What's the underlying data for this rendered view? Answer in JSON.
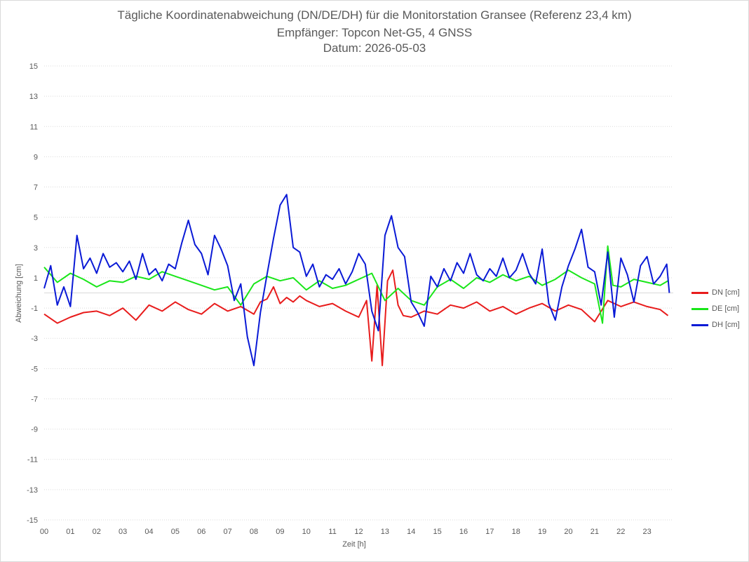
{
  "chart_data": {
    "type": "line",
    "title": "Tägliche Koordinatenabweichung (DN/DE/DH) für die Monitorstation Gransee (Referenz 23,4 km)",
    "subtitle": "Empfänger: Topcon Net-G5, 4 GNSS",
    "date_line": "Datum: 2026-05-03",
    "xlabel": "Zeit [h]",
    "ylabel": "Abweichung [cm]",
    "xlim": [
      0,
      24
    ],
    "ylim": [
      -15,
      15
    ],
    "x_ticks": [
      "00",
      "01",
      "02",
      "03",
      "04",
      "05",
      "06",
      "07",
      "08",
      "09",
      "10",
      "11",
      "12",
      "13",
      "14",
      "15",
      "16",
      "17",
      "18",
      "19",
      "20",
      "21",
      "22",
      "23"
    ],
    "y_ticks": [
      "15",
      "13",
      "11",
      "9",
      "7",
      "5",
      "3",
      "1",
      "-1",
      "-3",
      "-5",
      "-7",
      "-9",
      "-11",
      "-13",
      "-15"
    ],
    "grid": "horizontal dotted",
    "legend_position": "right",
    "series": [
      {
        "name": "DN [cm]",
        "color": "#e81c1c",
        "x": [
          0,
          0.5,
          1,
          1.5,
          2,
          2.5,
          3,
          3.5,
          4,
          4.5,
          5,
          5.5,
          6,
          6.5,
          7,
          7.5,
          8,
          8.25,
          8.5,
          8.75,
          9,
          9.25,
          9.5,
          9.75,
          10,
          10.5,
          11,
          11.5,
          12,
          12.3,
          12.5,
          12.7,
          12.9,
          13.1,
          13.3,
          13.5,
          13.7,
          14,
          14.5,
          15,
          15.5,
          16,
          16.5,
          17,
          17.5,
          18,
          18.5,
          19,
          19.5,
          20,
          20.5,
          21,
          21.5,
          22,
          22.5,
          23,
          23.5,
          23.8
        ],
        "y": [
          -1.4,
          -2.0,
          -1.6,
          -1.3,
          -1.2,
          -1.5,
          -1.0,
          -1.8,
          -0.8,
          -1.2,
          -0.6,
          -1.1,
          -1.4,
          -0.7,
          -1.2,
          -0.9,
          -1.4,
          -0.6,
          -0.4,
          0.4,
          -0.7,
          -0.3,
          -0.6,
          -0.2,
          -0.5,
          -0.9,
          -0.7,
          -1.2,
          -1.6,
          -0.5,
          -4.5,
          0.5,
          -4.8,
          0.8,
          1.5,
          -0.8,
          -1.5,
          -1.6,
          -1.2,
          -1.4,
          -0.8,
          -1.0,
          -0.6,
          -1.2,
          -0.9,
          -1.4,
          -1.0,
          -0.7,
          -1.2,
          -0.8,
          -1.1,
          -1.9,
          -0.5,
          -0.9,
          -0.6,
          -0.9,
          -1.1,
          -1.5
        ]
      },
      {
        "name": "DE [cm]",
        "color": "#19e619",
        "x": [
          0,
          0.5,
          1,
          1.5,
          2,
          2.5,
          3,
          3.5,
          4,
          4.5,
          5,
          5.5,
          6,
          6.5,
          7,
          7.5,
          8,
          8.5,
          9,
          9.5,
          10,
          10.5,
          11,
          11.5,
          12,
          12.5,
          13,
          13.5,
          14,
          14.5,
          15,
          15.5,
          16,
          16.5,
          17,
          17.5,
          18,
          18.5,
          19,
          19.5,
          20,
          20.5,
          21,
          21.3,
          21.5,
          21.7,
          22,
          22.5,
          23,
          23.5,
          23.8
        ],
        "y": [
          1.7,
          0.7,
          1.3,
          0.9,
          0.4,
          0.8,
          0.7,
          1.1,
          0.9,
          1.4,
          1.1,
          0.8,
          0.5,
          0.2,
          0.4,
          -0.8,
          0.6,
          1.1,
          0.8,
          1.0,
          0.2,
          0.8,
          0.3,
          0.5,
          0.9,
          1.3,
          -0.5,
          0.3,
          -0.5,
          -0.8,
          0.4,
          0.9,
          0.3,
          1.0,
          0.7,
          1.2,
          0.8,
          1.1,
          0.5,
          0.9,
          1.5,
          1.0,
          0.6,
          -2.0,
          3.1,
          0.5,
          0.4,
          0.9,
          0.7,
          0.5,
          0.8
        ]
      },
      {
        "name": "DH [cm]",
        "color": "#0a1ad6",
        "x": [
          0,
          0.25,
          0.5,
          0.75,
          1,
          1.25,
          1.5,
          1.75,
          2,
          2.25,
          2.5,
          2.75,
          3,
          3.25,
          3.5,
          3.75,
          4,
          4.25,
          4.5,
          4.75,
          5,
          5.25,
          5.5,
          5.75,
          6,
          6.25,
          6.5,
          6.75,
          7,
          7.25,
          7.5,
          7.75,
          8,
          8.25,
          8.5,
          8.75,
          9,
          9.25,
          9.5,
          9.75,
          10,
          10.25,
          10.5,
          10.75,
          11,
          11.25,
          11.5,
          11.75,
          12,
          12.25,
          12.5,
          12.75,
          13,
          13.25,
          13.5,
          13.75,
          14,
          14.25,
          14.5,
          14.75,
          15,
          15.25,
          15.5,
          15.75,
          16,
          16.25,
          16.5,
          16.75,
          17,
          17.25,
          17.5,
          17.75,
          18,
          18.25,
          18.5,
          18.75,
          19,
          19.25,
          19.5,
          19.75,
          20,
          20.25,
          20.5,
          20.75,
          21,
          21.25,
          21.5,
          21.75,
          22,
          22.25,
          22.5,
          22.75,
          23,
          23.25,
          23.5,
          23.75,
          23.85
        ],
        "y": [
          0.3,
          1.8,
          -0.8,
          0.4,
          -0.9,
          3.8,
          1.6,
          2.3,
          1.3,
          2.6,
          1.7,
          2.0,
          1.4,
          2.1,
          0.9,
          2.6,
          1.2,
          1.6,
          0.8,
          1.9,
          1.6,
          3.3,
          4.8,
          3.2,
          2.6,
          1.2,
          3.8,
          2.9,
          1.8,
          -0.5,
          0.6,
          -2.9,
          -4.8,
          -1.3,
          1.2,
          3.6,
          5.8,
          6.5,
          3.0,
          2.7,
          1.1,
          1.9,
          0.4,
          1.2,
          0.9,
          1.6,
          0.6,
          1.4,
          2.6,
          1.9,
          -1.2,
          -2.5,
          3.8,
          5.1,
          3.0,
          2.4,
          -0.6,
          -1.3,
          -2.2,
          1.1,
          0.4,
          1.6,
          0.8,
          2.0,
          1.3,
          2.6,
          1.2,
          0.8,
          1.6,
          1.1,
          2.3,
          1.0,
          1.5,
          2.6,
          1.3,
          0.6,
          2.9,
          -0.7,
          -1.8,
          0.4,
          1.8,
          2.9,
          4.2,
          1.7,
          1.4,
          -0.8,
          2.7,
          -1.6,
          2.3,
          1.2,
          -0.6,
          1.8,
          2.4,
          0.6,
          1.1,
          1.9,
          0.0
        ]
      }
    ]
  }
}
